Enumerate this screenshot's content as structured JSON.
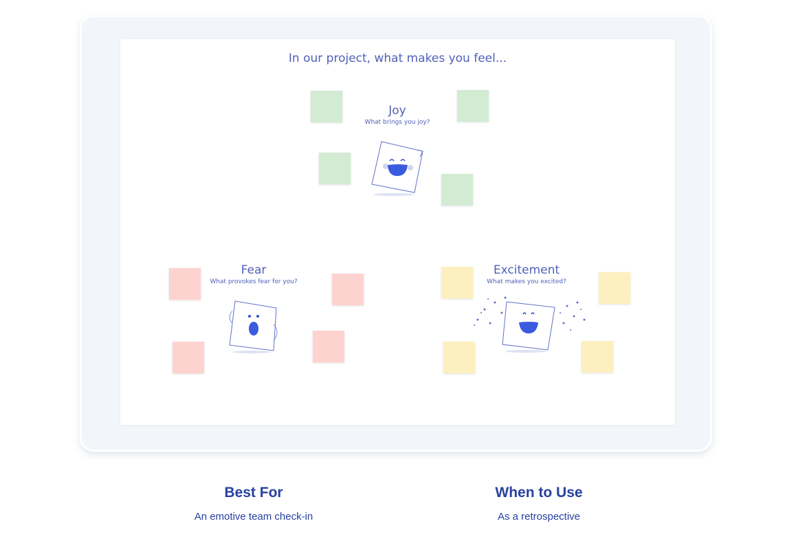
{
  "board": {
    "title": "In our project, what makes you feel...",
    "categories": [
      {
        "name": "Joy",
        "prompt": "What brings you joy?",
        "sticky_color": "#d3ebd3"
      },
      {
        "name": "Fear",
        "prompt": "What provokes fear for you?",
        "sticky_color": "#fdd3d0"
      },
      {
        "name": "Excitement",
        "prompt": "What makes you excited?",
        "sticky_color": "#fdf0c0"
      }
    ]
  },
  "info": {
    "best_for": {
      "heading": "Best For",
      "text": "An emotive team check-in"
    },
    "when_to_use": {
      "heading": "When to Use",
      "text": "As a retrospective"
    }
  }
}
